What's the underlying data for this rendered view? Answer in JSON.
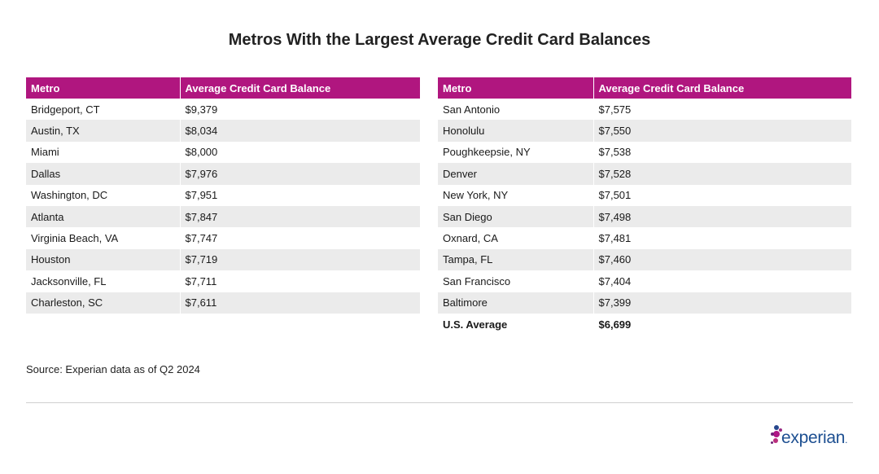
{
  "title": "Metros With the Largest Average Credit Card Balances",
  "columns": [
    "Metro",
    "Average Credit Card Balance"
  ],
  "chart_data": {
    "type": "table",
    "title": "Metros With the Largest Average Credit Card Balances",
    "columns": [
      "Metro",
      "Average Credit Card Balance"
    ],
    "rows": [
      [
        "Bridgeport, CT",
        "$9,379"
      ],
      [
        "Austin, TX",
        "$8,034"
      ],
      [
        "Miami",
        "$8,000"
      ],
      [
        "Dallas",
        "$7,976"
      ],
      [
        "Washington, DC",
        "$7,951"
      ],
      [
        "Atlanta",
        "$7,847"
      ],
      [
        "Virginia Beach, VA",
        "$7,747"
      ],
      [
        "Houston",
        "$7,719"
      ],
      [
        "Jacksonville, FL",
        "$7,711"
      ],
      [
        "Charleston, SC",
        "$7,611"
      ],
      [
        "San Antonio",
        "$7,575"
      ],
      [
        "Honolulu",
        "$7,550"
      ],
      [
        "Poughkeepsie, NY",
        "$7,538"
      ],
      [
        "Denver",
        "$7,528"
      ],
      [
        "New York, NY",
        "$7,501"
      ],
      [
        "San Diego",
        "$7,498"
      ],
      [
        "Oxnard, CA",
        "$7,481"
      ],
      [
        "Tampa, FL",
        "$7,460"
      ],
      [
        "San Francisco",
        "$7,404"
      ],
      [
        "Baltimore",
        "$7,399"
      ]
    ],
    "summary": [
      "U.S. Average",
      "$6,699"
    ]
  },
  "source": "Source: Experian data as of Q2 2024",
  "brand": {
    "logo_text": "experian",
    "trademark": "."
  },
  "colors": {
    "header_bg": "#b0167f",
    "stripe": "#ebebeb",
    "logo_blue": "#1d4f91"
  }
}
